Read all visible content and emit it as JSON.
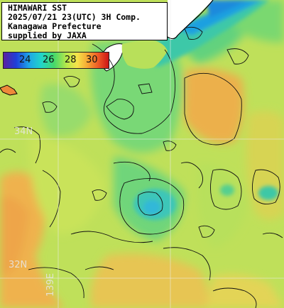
{
  "title_lines": [
    "HIMAWARI SST",
    "2025/07/21 23(UTC) 3H Comp.",
    "Kanagawa Prefecture",
    "supplied by JAXA"
  ],
  "colorbar": {
    "ticks": [
      "24",
      "26",
      "28",
      "30"
    ],
    "colors": [
      "#5b1fa0",
      "#1f3fd8",
      "#1ea5e8",
      "#21d5c8",
      "#45d86a",
      "#b9e84a",
      "#f5e34a",
      "#f5a733",
      "#ee5a26",
      "#cc1515"
    ]
  },
  "grid_labels": {
    "lat_upper": "34N",
    "lat_lower": "32N",
    "lon": "139E"
  },
  "map_colors": {
    "land": "#ffffff",
    "warm": "#f0b050",
    "mid": "#c8e060",
    "cool": "#70d878",
    "cold": "#30c0c8",
    "coast_blue": "#1090e0"
  }
}
